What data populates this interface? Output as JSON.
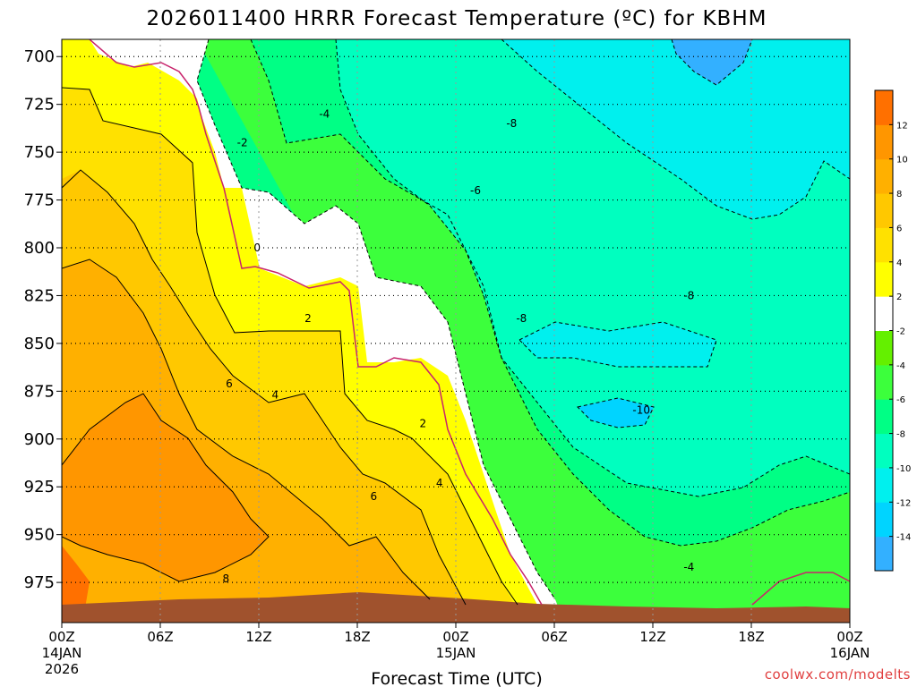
{
  "chart_data": {
    "type": "heatmap",
    "title": "2026011400 HRRR Forecast Temperature (ºC) for KBHM",
    "xlabel": "Forecast Time (UTC)",
    "ylabel": "",
    "y_scale": "pressure",
    "ylim": [
      996,
      691
    ],
    "xlim": [
      0,
      48
    ],
    "y_ticks": [
      700,
      725,
      750,
      775,
      800,
      825,
      850,
      875,
      900,
      925,
      950,
      975
    ],
    "x_ticks": [
      {
        "hour": 0,
        "label": "00Z",
        "sub1": "14JAN",
        "sub2": "2026"
      },
      {
        "hour": 6,
        "label": "06Z",
        "sub1": "",
        "sub2": ""
      },
      {
        "hour": 12,
        "label": "12Z",
        "sub1": "",
        "sub2": ""
      },
      {
        "hour": 18,
        "label": "18Z",
        "sub1": "",
        "sub2": ""
      },
      {
        "hour": 24,
        "label": "00Z",
        "sub1": "15JAN",
        "sub2": ""
      },
      {
        "hour": 30,
        "label": "06Z",
        "sub1": "",
        "sub2": ""
      },
      {
        "hour": 36,
        "label": "12Z",
        "sub1": "",
        "sub2": ""
      },
      {
        "hour": 42,
        "label": "18Z",
        "sub1": "",
        "sub2": ""
      },
      {
        "hour": 48,
        "label": "00Z",
        "sub1": "16JAN",
        "sub2": ""
      }
    ],
    "grid": true,
    "colorbar": {
      "levels": [
        -16,
        -14,
        -12,
        -10,
        -8,
        -6,
        -4,
        -2,
        2,
        4,
        6,
        8,
        10,
        12,
        14
      ],
      "labels": [
        -14,
        -12,
        -10,
        -8,
        -6,
        -4,
        -2,
        2,
        4,
        6,
        8,
        10,
        12
      ],
      "colors": [
        "#33b0ff",
        "#00d4ff",
        "#00f0ee",
        "#00ffbf",
        "#00ff85",
        "#3cff3c",
        "#64f000",
        "#ffffff",
        "#ffff00",
        "#ffe100",
        "#ffc800",
        "#ffb000",
        "#ff9600",
        "#ff7000"
      ]
    },
    "contour_labels": [
      {
        "text": "-4",
        "hour": 16.0,
        "p": 730
      },
      {
        "text": "-8",
        "hour": 27.4,
        "p": 735
      },
      {
        "text": "-2",
        "hour": 11.0,
        "p": 745
      },
      {
        "text": "-6",
        "hour": 25.2,
        "p": 770
      },
      {
        "text": "0",
        "hour": 11.9,
        "p": 800
      },
      {
        "text": "2",
        "hour": 15.0,
        "p": 837
      },
      {
        "text": "-8",
        "hour": 28.0,
        "p": 837
      },
      {
        "text": "-8",
        "hour": 38.2,
        "p": 825
      },
      {
        "text": "6",
        "hour": 10.2,
        "p": 871
      },
      {
        "text": "4",
        "hour": 13.0,
        "p": 877
      },
      {
        "text": "-10",
        "hour": 35.3,
        "p": 885
      },
      {
        "text": "2",
        "hour": 22.0,
        "p": 892
      },
      {
        "text": "6",
        "hour": 19.0,
        "p": 930
      },
      {
        "text": "4",
        "hour": 23.0,
        "p": 923
      },
      {
        "text": "8",
        "hour": 10.0,
        "p": 973
      },
      {
        "text": "-4",
        "hour": 38.2,
        "p": 967
      }
    ],
    "terrain_color": "#a0522d",
    "freezing_line_color": "#c8246c"
  },
  "credit": "coolwx.com/modelts"
}
